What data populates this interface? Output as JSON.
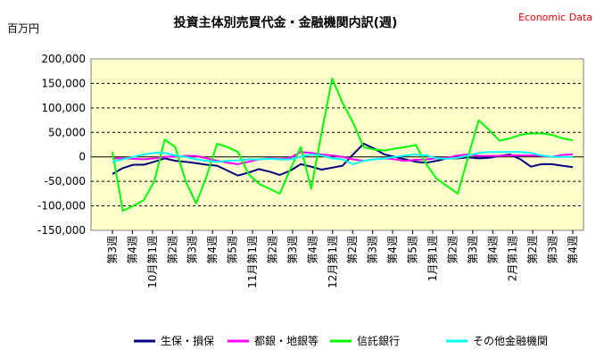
{
  "chart_data": {
    "type": "line",
    "title": "投資主体別売買代金・金融機関内訳(週)",
    "source": "Economic Data",
    "unit": "百万円",
    "ylim": [
      -150000,
      200000
    ],
    "yticks": [
      "200,000",
      "150,000",
      "100,000",
      "50,000",
      "0",
      "-50,000",
      "-100,000",
      "-150,000"
    ],
    "ytick_values": [
      200000,
      150000,
      100000,
      50000,
      0,
      -50000,
      -100000,
      -150000
    ],
    "grid": "dashed horizontal",
    "plot_background": "#ffffcc",
    "legend_position": "bottom",
    "categories": [
      "第3週",
      "第4週",
      "10月第1週",
      "第2週",
      "第3週",
      "第4週",
      "第5週",
      "11月第1週",
      "第2週",
      "第3週",
      "第4週",
      "12月第1週",
      "第2週",
      "第3週",
      "第4週",
      "第5週",
      "1月第1週",
      "第2週",
      "第3週",
      "第4週",
      "2月第1週",
      "第2週",
      "第3週",
      "第4週"
    ],
    "x": [
      "",
      "",
      "",
      "",
      "",
      "",
      "",
      "",
      "",
      "",
      "",
      "",
      "",
      "",
      "",
      "",
      "",
      "",
      "",
      "",
      "",
      "",
      "",
      "",
      "",
      "",
      "",
      "",
      "",
      "",
      "",
      "",
      "",
      "",
      "",
      "",
      "",
      "",
      "",
      "",
      "",
      "",
      "",
      "",
      ""
    ],
    "series": [
      {
        "name": "生保・損保",
        "color": "#000080",
        "values": [
          -35000,
          -23000,
          -16000,
          -16000,
          -10000,
          -3000,
          -8000,
          -10000,
          -13000,
          -16000,
          -18000,
          -28000,
          -38000,
          -32000,
          -25000,
          -30000,
          -37000,
          -28000,
          -15000,
          -20000,
          -26000,
          -22000,
          -18000,
          5000,
          27000,
          17000,
          5000,
          0,
          -5000,
          -10000,
          -12000,
          -8000,
          -3000,
          -3000,
          -1000,
          -3000,
          -2000,
          2000,
          5000,
          -5000,
          -20000,
          -15000,
          -15000,
          -18000,
          -21000
        ]
      },
      {
        "name": "都銀・地銀等",
        "color": "#ff00ff",
        "values": [
          -3000,
          -3000,
          -4000,
          -5000,
          -3000,
          0,
          1000,
          2000,
          2000,
          -3000,
          -8000,
          -12000,
          -15000,
          -10000,
          -5000,
          -3000,
          -4000,
          -2000,
          10000,
          8000,
          5000,
          3000,
          0,
          -5000,
          -8000,
          -5000,
          -3000,
          -5000,
          -8000,
          -6000,
          -5000,
          -3000,
          -2000,
          3000,
          5000,
          2000,
          2000,
          2000,
          3000,
          3000,
          3000,
          2000,
          0,
          4000,
          5000
        ]
      },
      {
        "name": "信託銀行",
        "color": "#00ff00",
        "values": [
          10000,
          -110000,
          -100000,
          -88000,
          -50000,
          35000,
          20000,
          -50000,
          -95000,
          -40000,
          27000,
          20000,
          10000,
          -35000,
          -55000,
          -65000,
          -75000,
          -25000,
          20000,
          -65000,
          50000,
          160000,
          110000,
          70000,
          20000,
          15000,
          13000,
          17000,
          20000,
          24000,
          -15000,
          -45000,
          -60000,
          -75000,
          0,
          75000,
          55000,
          33000,
          38000,
          45000,
          48000,
          48000,
          45000,
          38000,
          34000
        ]
      },
      {
        "name": "その他金融機関",
        "color": "#00ffff",
        "values": [
          -10000,
          -5000,
          0,
          5000,
          8000,
          8000,
          3000,
          0,
          -5000,
          -8000,
          -10000,
          -8000,
          -7000,
          -5000,
          -5000,
          -4000,
          -5000,
          -5000,
          0,
          5000,
          3000,
          -3000,
          -5000,
          -15000,
          -8000,
          -5000,
          -3000,
          0,
          3000,
          5000,
          3000,
          -3000,
          -4000,
          -2000,
          3000,
          8000,
          10000,
          10000,
          10000,
          10000,
          8000,
          3000,
          0,
          0,
          0
        ]
      }
    ]
  }
}
